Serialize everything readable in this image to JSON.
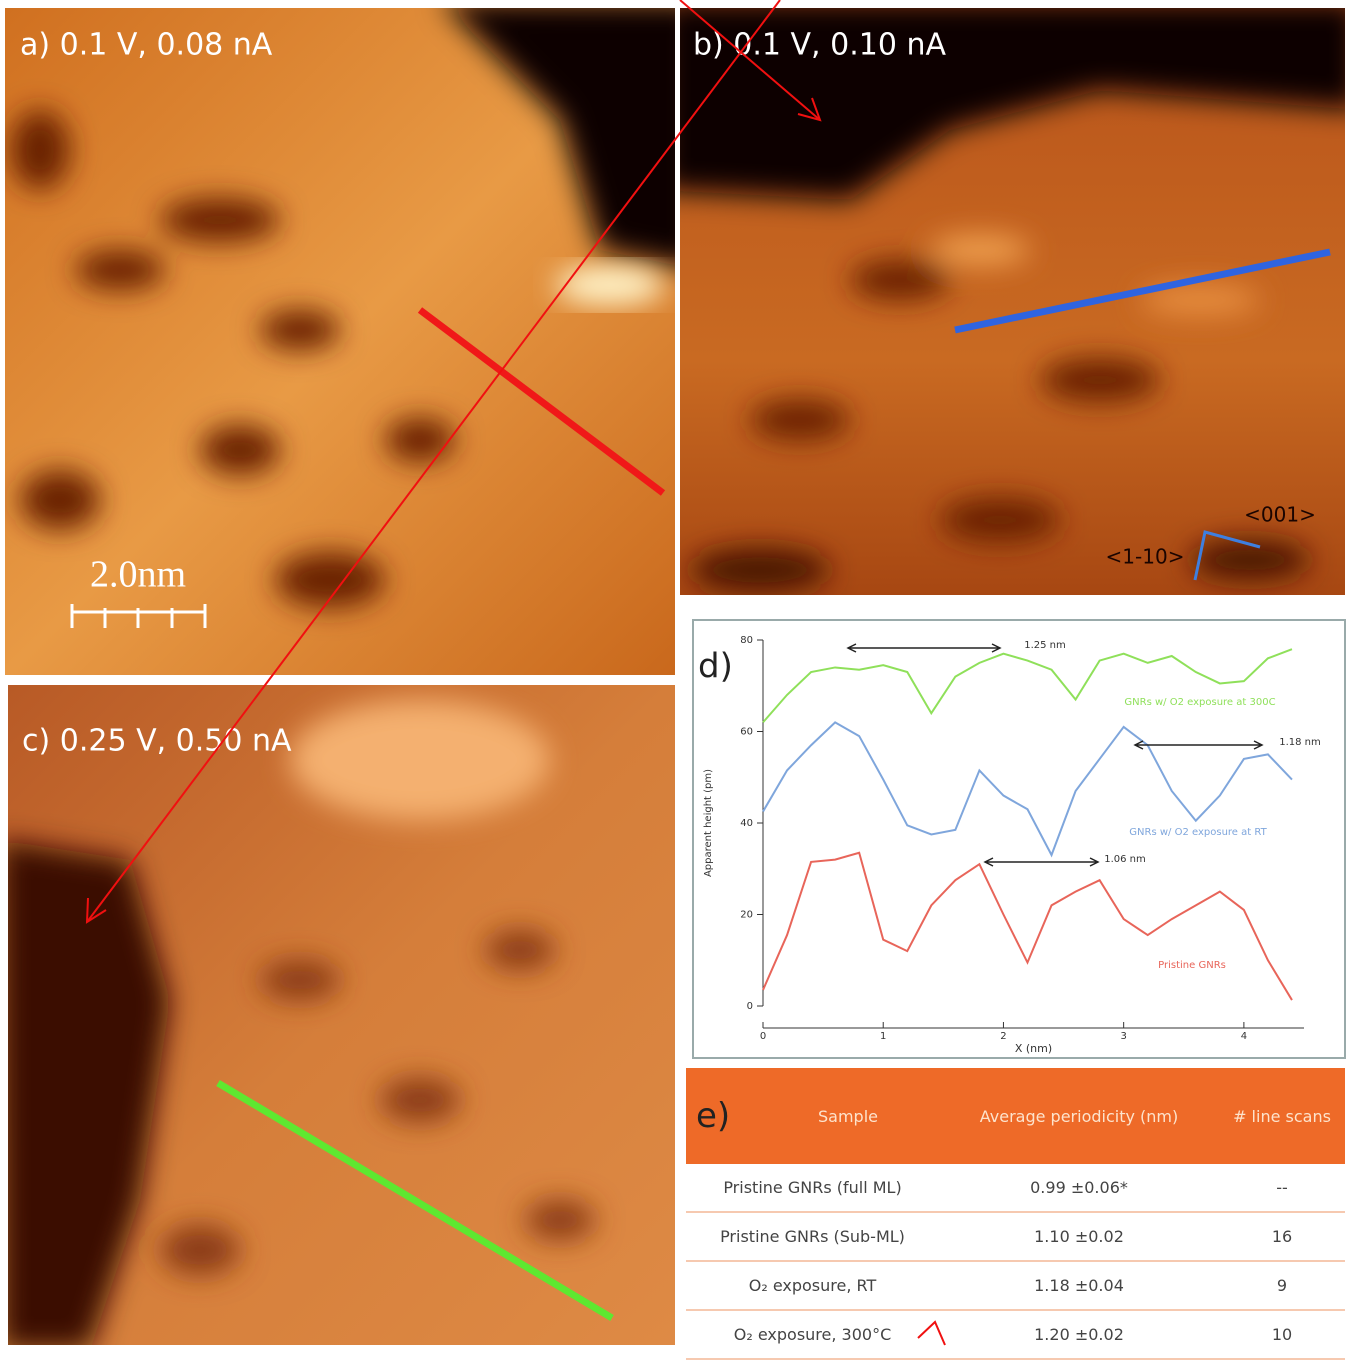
{
  "panels": [
    {
      "label": "a) 0.1 V, 0.08 nA"
    },
    {
      "label": "b) 0.1 V, 0.10 nA"
    },
    {
      "label": "c) 0.25 V, 0.50 nA"
    }
  ],
  "scale_bar": "2.0nm",
  "directions": [
    "<001>",
    "<1-10>"
  ],
  "chart_data": {
    "type": "line",
    "panel_label": "d)",
    "x_label": "X (nm)",
    "y_label": "Apparent height (pm)",
    "x": [
      0,
      0.2,
      0.4,
      0.6,
      0.8,
      1.0,
      1.2,
      1.4,
      1.6,
      1.8,
      2.0,
      2.2,
      2.4,
      2.6,
      2.8,
      3.0,
      3.2,
      3.4,
      3.6,
      3.8,
      4.0,
      4.2,
      4.4
    ],
    "series": [
      {
        "name": "GNRs w/ O2 exposure at 300C",
        "color": "#8fe05a",
        "values": [
          62,
          68,
          73,
          74,
          73.5,
          74.5,
          73,
          64,
          72,
          75,
          77,
          75.5,
          73.5,
          67,
          75.5,
          77,
          75,
          76.5,
          73,
          70.5,
          71,
          76,
          78
        ]
      },
      {
        "name": "GNRs w/ O2 exposure at RT",
        "color": "#7fa6dc",
        "values": [
          42.5,
          51.5,
          57,
          62,
          59,
          49.5,
          39.5,
          37.5,
          38.5,
          51.5,
          46,
          43,
          33,
          47,
          54,
          61,
          57,
          47,
          40.5,
          46,
          54,
          55,
          49.5
        ]
      },
      {
        "name": "Pristine GNRs",
        "color": "#e8655a",
        "values": [
          3.5,
          15.5,
          31.5,
          32,
          33.5,
          14.5,
          12,
          22,
          27.5,
          31,
          20,
          9.5,
          22,
          25,
          27.5,
          19,
          15.5,
          19,
          22,
          25,
          21,
          10,
          1.3
        ]
      }
    ],
    "annotations": [
      "1.25 nm",
      "1.18 nm",
      "1.06 nm"
    ],
    "xlim": [
      0,
      4.5
    ],
    "ylim": [
      0,
      80
    ],
    "xticks": [
      0,
      1,
      2,
      3,
      4
    ],
    "yticks": [
      0,
      20,
      40,
      60,
      80
    ]
  },
  "table": {
    "label": "e)",
    "header": [
      "Sample",
      "Average periodicity (nm)",
      "# line scans"
    ],
    "rows": [
      [
        "Pristine GNRs (full ML)",
        "0.99 ±0.06*",
        "--"
      ],
      [
        "Pristine GNRs (Sub-ML)",
        "1.10 ±0.02",
        "16"
      ],
      [
        "O₂ exposure, RT",
        "1.18 ±0.04",
        "9"
      ],
      [
        "O₂ exposure, 300°C",
        "1.20 ±0.02",
        "10"
      ]
    ]
  }
}
